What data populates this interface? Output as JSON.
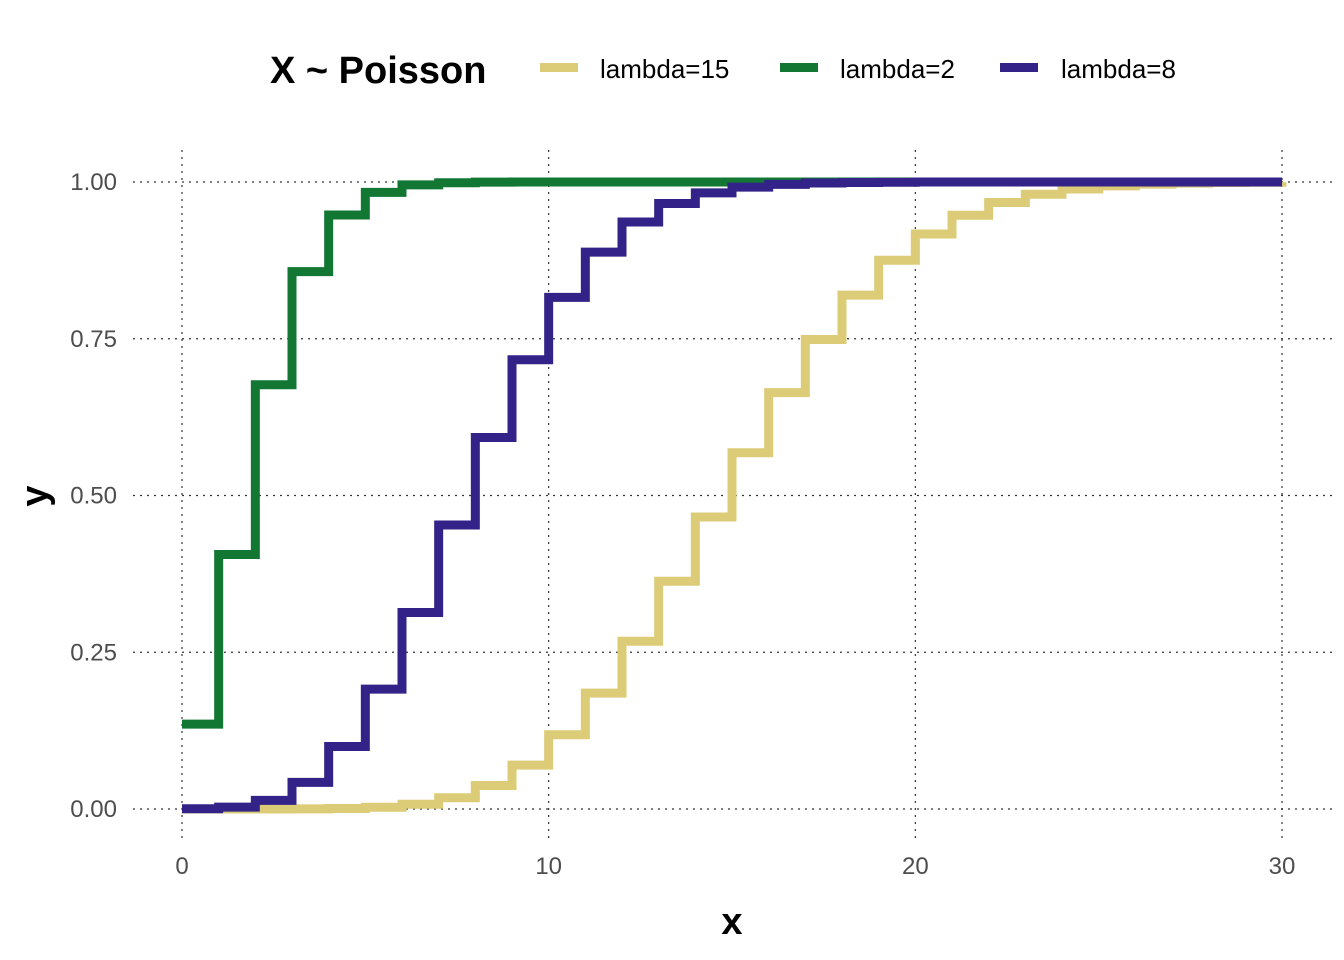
{
  "chart_data": {
    "type": "line",
    "subtype": "step",
    "title": "",
    "legend_title": "X ~ Poisson",
    "legend_position": "top",
    "xlabel": "x",
    "ylabel": "y",
    "xlim": [
      0,
      30
    ],
    "ylim": [
      0,
      1
    ],
    "x_ticks": [
      0,
      10,
      20,
      30
    ],
    "y_ticks": [
      0,
      0.25,
      0.5,
      0.75,
      1
    ],
    "x_tick_labels": [
      "0",
      "10",
      "20",
      "30"
    ],
    "y_tick_labels": [
      "0.00",
      "0.25",
      "0.50",
      "0.75",
      "1.00"
    ],
    "grid": true,
    "x": [
      0,
      1,
      2,
      3,
      4,
      5,
      6,
      7,
      8,
      9,
      10,
      11,
      12,
      13,
      14,
      15,
      16,
      17,
      18,
      19,
      20,
      21,
      22,
      23,
      24,
      25,
      26,
      27,
      28,
      29,
      30
    ],
    "series": [
      {
        "name": "lambda=15",
        "color": "#DDCC77",
        "values": [
          0.0,
          0.0,
          0.0,
          0.0002,
          0.0009,
          0.0028,
          0.0076,
          0.018,
          0.0374,
          0.0699,
          0.1185,
          0.1848,
          0.2676,
          0.3632,
          0.4657,
          0.5681,
          0.6641,
          0.7489,
          0.8195,
          0.8752,
          0.917,
          0.9469,
          0.9673,
          0.9805,
          0.9888,
          0.9938,
          0.9967,
          0.9983,
          0.9991,
          0.9996,
          0.9998
        ]
      },
      {
        "name": "lambda=2",
        "color": "#117733",
        "values": [
          0.1353,
          0.406,
          0.6767,
          0.8571,
          0.9473,
          0.9834,
          0.9955,
          0.9989,
          0.9998,
          1.0,
          1.0,
          1.0,
          1.0,
          1.0,
          1.0,
          1.0,
          1.0,
          1.0,
          1.0,
          1.0,
          1.0,
          1.0,
          1.0,
          1.0,
          1.0,
          1.0,
          1.0,
          1.0,
          1.0,
          1.0,
          1.0
        ]
      },
      {
        "name": "lambda=8",
        "color": "#332288",
        "values": [
          0.0003,
          0.003,
          0.0138,
          0.0424,
          0.0996,
          0.1912,
          0.3134,
          0.453,
          0.5925,
          0.7166,
          0.8159,
          0.8881,
          0.9362,
          0.9658,
          0.9827,
          0.9918,
          0.9963,
          0.9984,
          0.9993,
          0.9997,
          0.9999,
          1.0,
          1.0,
          1.0,
          1.0,
          1.0,
          1.0,
          1.0,
          1.0,
          1.0,
          1.0
        ]
      }
    ]
  }
}
